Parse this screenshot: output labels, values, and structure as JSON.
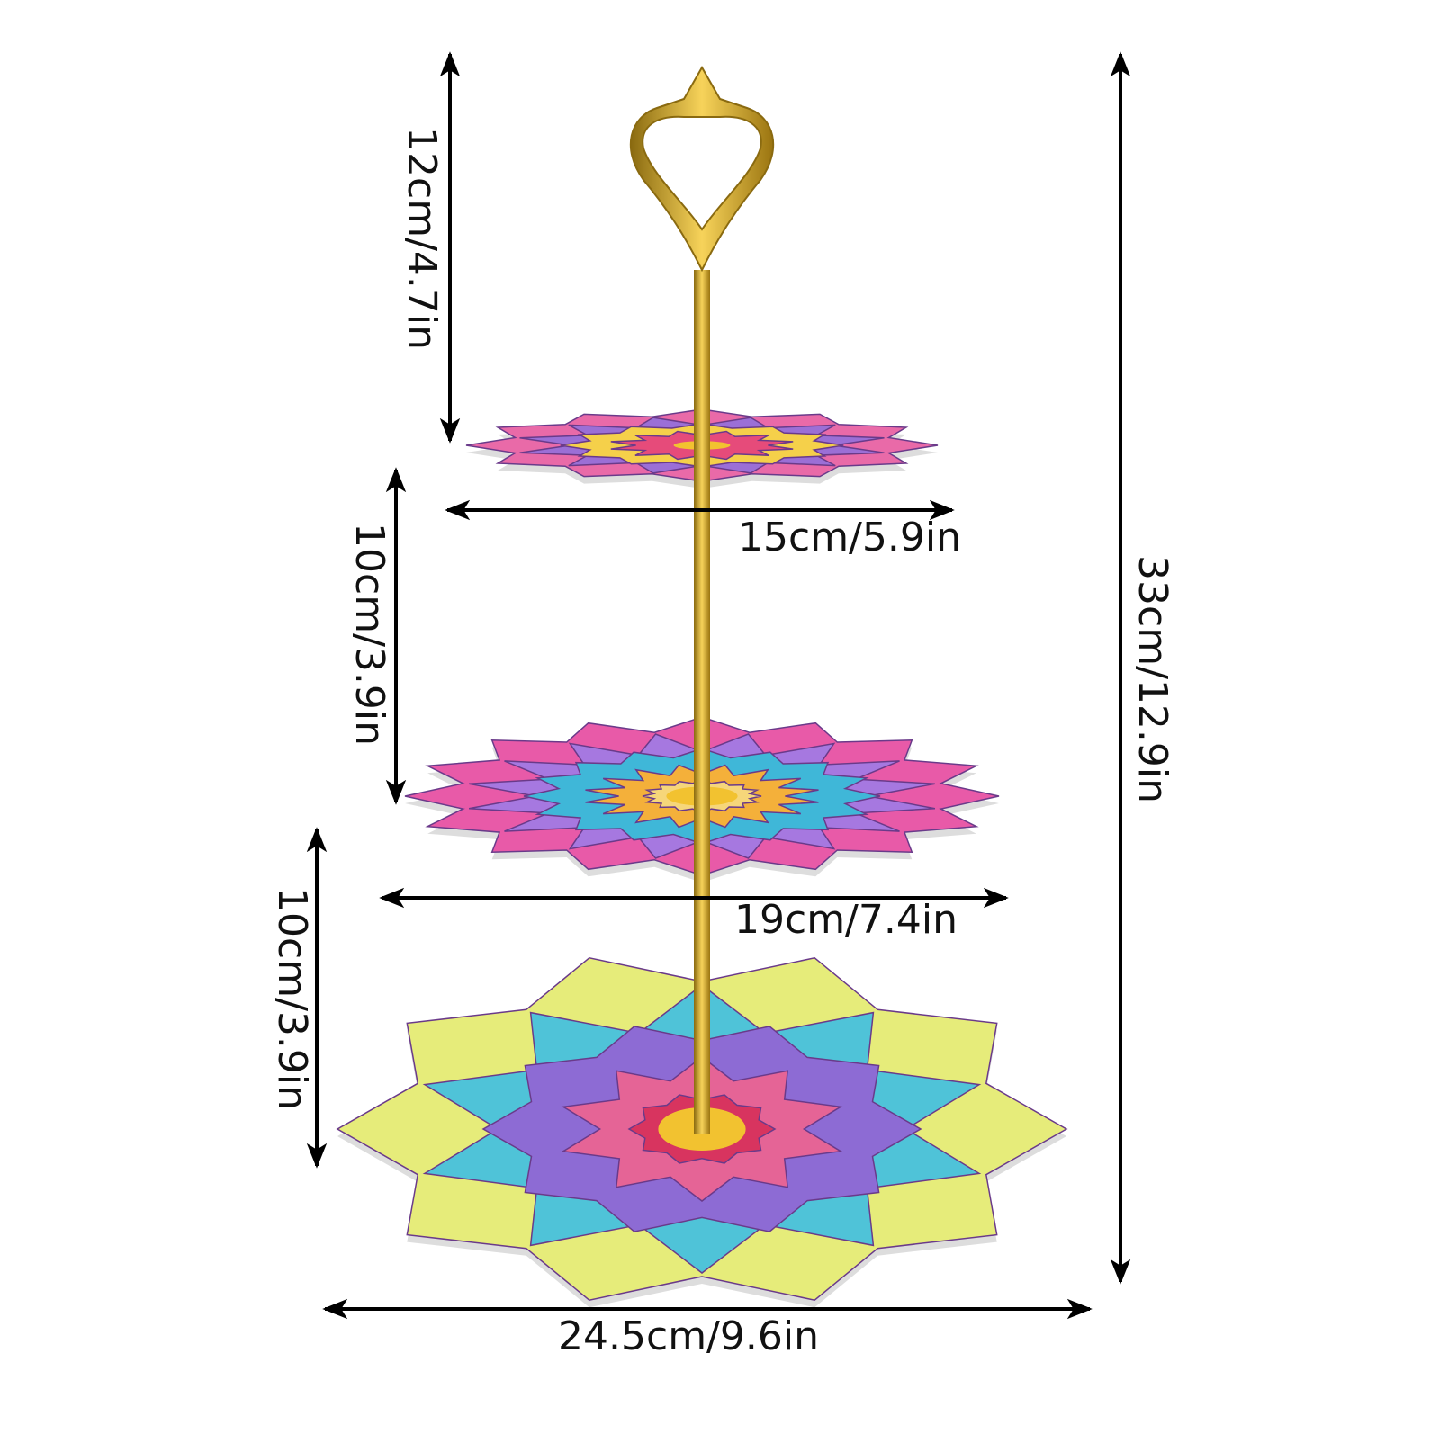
{
  "dimensions": {
    "handle_height": "12cm/4.7in",
    "top_tier_width": "15cm/5.9in",
    "middle_gap": "10cm/3.9in",
    "middle_tier_width": "19cm/7.4in",
    "bottom_gap": "10cm/3.9in",
    "bottom_tier_width": "24.5cm/9.6in",
    "total_height": "33cm/12.9in"
  }
}
